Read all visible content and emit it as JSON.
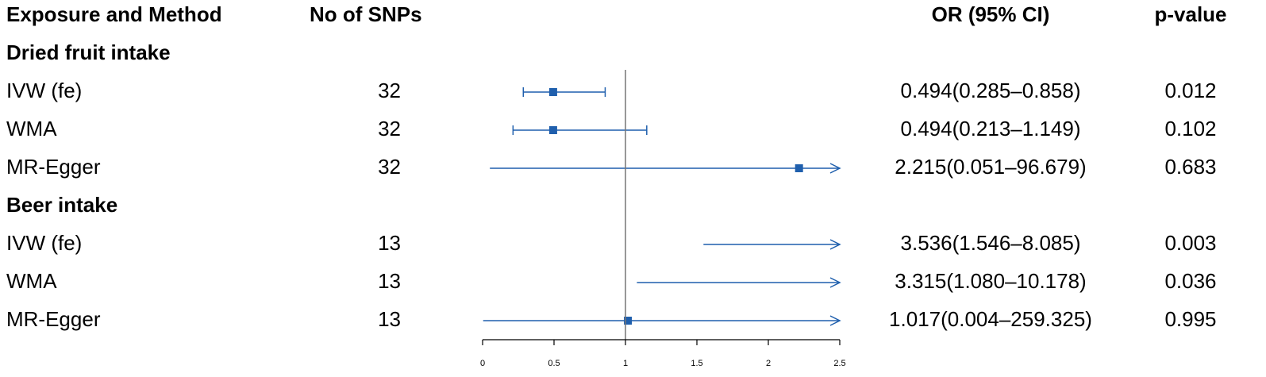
{
  "chart_data": {
    "type": "forest",
    "columns": [
      "Exposure and Method",
      "No of SNPs",
      "OR (95% CI)",
      "p-value"
    ],
    "groups": [
      {
        "name": "Dried fruit intake",
        "rows": [
          {
            "method": "IVW (fe)",
            "n_snps": 32,
            "or": 0.494,
            "lower": 0.285,
            "upper": 0.858,
            "or_label": "0.494(0.285–0.858)",
            "p": 0.012
          },
          {
            "method": "WMA",
            "n_snps": 32,
            "or": 0.494,
            "lower": 0.213,
            "upper": 1.149,
            "or_label": "0.494(0.213–1.149)",
            "p": 0.102
          },
          {
            "method": "MR-Egger",
            "n_snps": 32,
            "or": 2.215,
            "lower": 0.051,
            "upper": 96.679,
            "or_label": "2.215(0.051–96.679)",
            "p": 0.683
          }
        ]
      },
      {
        "name": "Beer intake",
        "rows": [
          {
            "method": "IVW (fe)",
            "n_snps": 13,
            "or": 3.536,
            "lower": 1.546,
            "upper": 8.085,
            "or_label": "3.536(1.546–8.085)",
            "p": 0.003
          },
          {
            "method": "WMA",
            "n_snps": 13,
            "or": 3.315,
            "lower": 1.08,
            "upper": 10.178,
            "or_label": "3.315(1.080–10.178)",
            "p": 0.036
          },
          {
            "method": "MR-Egger",
            "n_snps": 13,
            "or": 1.017,
            "lower": 0.004,
            "upper": 259.325,
            "or_label": "1.017(0.004–259.325)",
            "p": 0.995
          }
        ]
      }
    ],
    "xlim": [
      0,
      2.5
    ],
    "xticks": [
      0,
      0.5,
      1,
      1.5,
      2,
      2.5
    ],
    "reference_line": 1,
    "color": "#1f5fad"
  }
}
